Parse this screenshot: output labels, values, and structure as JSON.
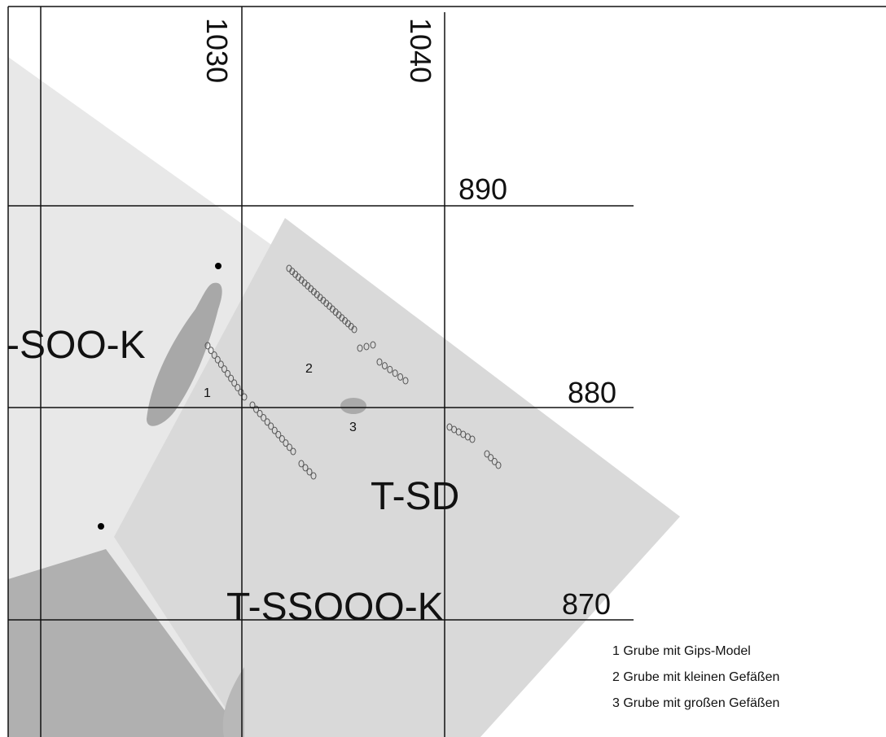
{
  "grid": {
    "x_labels": [
      "1030",
      "1040"
    ],
    "y_labels": [
      "890",
      "880",
      "870"
    ]
  },
  "areas": [
    "-SOO-K",
    "T-SD",
    "T-SSOOO-K"
  ],
  "features": [
    "1",
    "2",
    "3"
  ],
  "legend": [
    "1 Grube mit Gips-Model",
    "2 Grube mit kleinen Gefäßen",
    "3 Grube mit großen Gefäßen"
  ]
}
